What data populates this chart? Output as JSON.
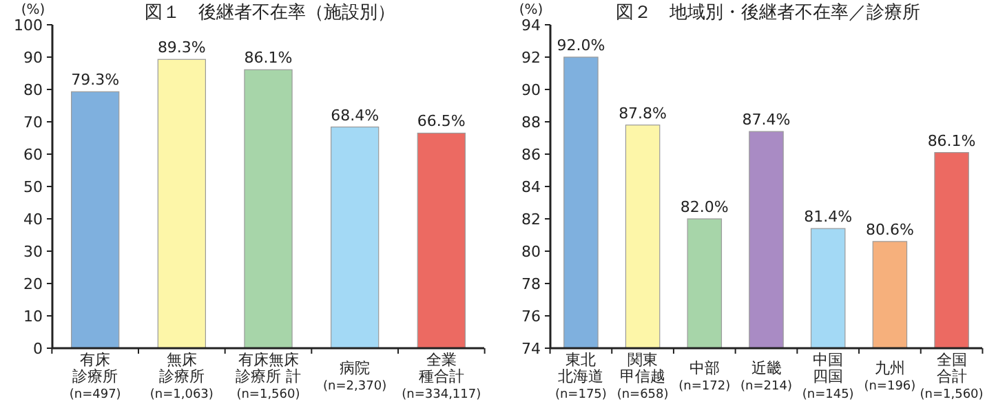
{
  "chart_data": [
    {
      "type": "bar",
      "title": "図１　後継者不在率（施設別）",
      "ylabel": "(%)",
      "categories": [
        "有床診療所(n=497)",
        "無床診療所(n=1,063)",
        "有床無床診療所 計(n=1,560)",
        "病院(n=2,370)",
        "全業種合計(n=334,117)"
      ],
      "values": [
        79.3,
        89.3,
        86.1,
        68.4,
        66.5
      ],
      "value_labels": [
        "79.3%",
        "89.3%",
        "86.1%",
        "68.4%",
        "66.5%"
      ],
      "colors": [
        "#7fb0de",
        "#fdf6a8",
        "#a7d5a9",
        "#a3d9f5",
        "#ec6a62"
      ],
      "ylim": [
        0,
        100
      ],
      "yticks": [
        0,
        10,
        20,
        30,
        40,
        50,
        60,
        70,
        80,
        90,
        100
      ]
    },
    {
      "type": "bar",
      "title": "図２　地域別・後継者不在率／診療所",
      "ylabel": "(%)",
      "categories": [
        "東北北海道(n=175)",
        "関東甲信越(n=658)",
        "中部(n=172)",
        "近畿(n=214)",
        "中国四国(n=145)",
        "九州(n=196)",
        "全国合計(n=1,560)"
      ],
      "values": [
        92.0,
        87.8,
        82.0,
        87.4,
        81.4,
        80.6,
        86.1
      ],
      "value_labels": [
        "92.0%",
        "87.8%",
        "82.0%",
        "87.4%",
        "81.4%",
        "80.6%",
        "86.1%"
      ],
      "colors": [
        "#7fb0de",
        "#fdf6a8",
        "#a7d5a9",
        "#a98bc4",
        "#a3d9f5",
        "#f6b07c",
        "#ec6a62"
      ],
      "ylim": [
        74,
        94
      ],
      "yticks": [
        74,
        76,
        78,
        80,
        82,
        84,
        86,
        88,
        90,
        92,
        94
      ]
    }
  ]
}
